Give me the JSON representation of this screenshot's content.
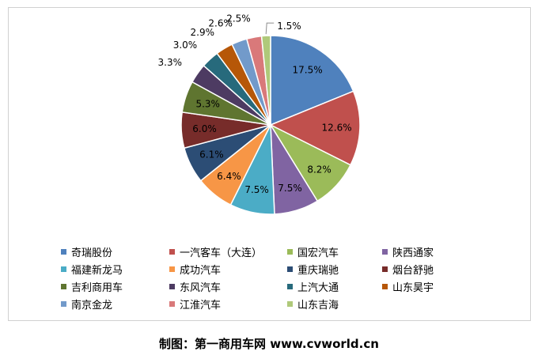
{
  "chart_data": {
    "type": "pie",
    "labels": [
      "奇瑞股份",
      "一汽客车（大连）",
      "国宏汽车",
      "陕西通家",
      "福建新龙马",
      "成功汽车",
      "重庆瑞驰",
      "烟台舒驰",
      "吉利商用车",
      "东风汽车",
      "上汽大通",
      "山东昊宇",
      "南京金龙",
      "江淮汽车",
      "山东吉海"
    ],
    "values": [
      17.5,
      12.6,
      8.2,
      7.5,
      7.5,
      6.4,
      6.1,
      6.0,
      5.3,
      3.3,
      3.0,
      2.9,
      2.6,
      2.5,
      1.5
    ],
    "value_labels": [
      "17.5%",
      "12.6%",
      "8.2%",
      "7.5%",
      "7.5%",
      "6.4%",
      "6.1%",
      "6.0%",
      "5.3%",
      "3.3%",
      "3.0%",
      "2.9%",
      "2.6%",
      "2.5%",
      "1.5%"
    ],
    "colors": [
      "#4F81BD",
      "#C0504D",
      "#9BBB59",
      "#8064A2",
      "#4BACC6",
      "#F79646",
      "#2C4D75",
      "#772C2A",
      "#5F7530",
      "#4D3B62",
      "#276A7C",
      "#B65708",
      "#729ACA",
      "#D9797A",
      "#AFC97A"
    ],
    "start_angle_deg": 0,
    "legend_position": "bottom"
  },
  "caption": "制图：第一商用车网 www.cvworld.cn"
}
